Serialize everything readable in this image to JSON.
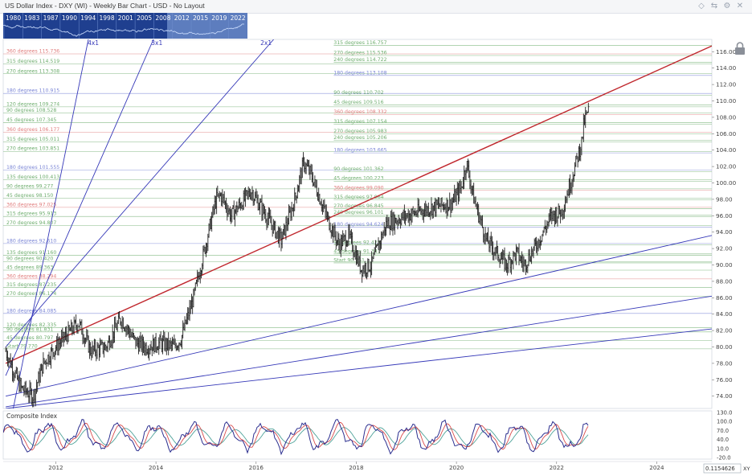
{
  "title": "US Dollar Index - DXY (WI) - Weekly Bar Chart - USD - No Layout",
  "header_icons": [
    "diamond-icon",
    "share-icon",
    "settings-icon",
    "close-icon"
  ],
  "overview": {
    "years": [
      "1980",
      "1983",
      "1987",
      "1990",
      "1994",
      "1998",
      "2001",
      "2005",
      "2008",
      "2012",
      "2015",
      "2019",
      "2022"
    ]
  },
  "colors": {
    "price_bar": "#222222",
    "fan_lines": "#3538b8",
    "resistance_line": "#c0272d",
    "level_red": "#e07c7c",
    "level_green": "#6fae6f",
    "level_blue": "#7b86d6",
    "overview_bg": "#1f3f8f",
    "overview_window": "#8fb1e6"
  },
  "chart_data": {
    "type": "bar",
    "title": "US Dollar Index - DXY (WI) - Weekly Bar Chart - USD - No Layout",
    "ylim": [
      72.5,
      117.5
    ],
    "xlim": [
      2010.95,
      2025.1
    ],
    "y_ticks": [
      "116.00",
      "114.00",
      "112.00",
      "110.00",
      "108.00",
      "106.00",
      "104.00",
      "102.00",
      "100.00",
      "98.00",
      "96.00",
      "94.00",
      "92.00",
      "90.00",
      "88.00",
      "86.00",
      "84.00",
      "82.00",
      "80.00",
      "78.00",
      "76.00",
      "74.00"
    ],
    "x_ticks": [
      "2012",
      "2014",
      "2016",
      "2018",
      "2020",
      "2022",
      "2024"
    ],
    "price_anchors": [
      [
        2011.0,
        79.5
      ],
      [
        2011.3,
        75.0
      ],
      [
        2011.55,
        74.0
      ],
      [
        2011.75,
        78.0
      ],
      [
        2012.0,
        80.0
      ],
      [
        2012.45,
        83.0
      ],
      [
        2012.7,
        79.5
      ],
      [
        2013.0,
        80.0
      ],
      [
        2013.3,
        83.5
      ],
      [
        2013.6,
        80.5
      ],
      [
        2013.8,
        80.0
      ],
      [
        2014.1,
        80.5
      ],
      [
        2014.35,
        80.0
      ],
      [
        2014.5,
        81.0
      ],
      [
        2014.75,
        86.0
      ],
      [
        2015.2,
        98.0
      ],
      [
        2015.3,
        98.5
      ],
      [
        2015.5,
        96.0
      ],
      [
        2015.9,
        99.0
      ],
      [
        2016.2,
        96.0
      ],
      [
        2016.5,
        93.0
      ],
      [
        2016.75,
        97.5
      ],
      [
        2016.95,
        102.5
      ],
      [
        2017.1,
        101.0
      ],
      [
        2017.4,
        96.0
      ],
      [
        2017.65,
        92.5
      ],
      [
        2017.85,
        93.5
      ],
      [
        2018.1,
        89.5
      ],
      [
        2018.3,
        90.0
      ],
      [
        2018.6,
        95.0
      ],
      [
        2019.0,
        96.0
      ],
      [
        2019.5,
        97.0
      ],
      [
        2019.9,
        97.5
      ],
      [
        2020.1,
        99.5
      ],
      [
        2020.2,
        102.5
      ],
      [
        2020.35,
        98.0
      ],
      [
        2020.6,
        93.0
      ],
      [
        2021.0,
        90.0
      ],
      [
        2021.2,
        91.5
      ],
      [
        2021.35,
        90.0
      ],
      [
        2021.6,
        92.5
      ],
      [
        2021.9,
        96.0
      ],
      [
        2022.1,
        96.5
      ],
      [
        2022.3,
        100.5
      ],
      [
        2022.5,
        105.0
      ],
      [
        2022.55,
        107.5
      ],
      [
        2022.65,
        109.0
      ]
    ],
    "trendlines": [
      {
        "name": "",
        "color": "#c0272d",
        "points": [
          [
            2011.0,
            78.0
          ],
          [
            2025.1,
            116.7
          ]
        ]
      },
      {
        "name": "1x1",
        "color": "#3538b8",
        "points": [
          [
            2011.0,
            74.0
          ],
          [
            2025.1,
            93.6
          ]
        ]
      },
      {
        "name": "",
        "color": "#3538b8",
        "points": [
          [
            2011.0,
            72.7
          ],
          [
            2025.1,
            86.2
          ]
        ]
      },
      {
        "name": "",
        "color": "#3538b8",
        "points": [
          [
            2011.0,
            72.5
          ],
          [
            2025.1,
            82.2
          ]
        ]
      },
      {
        "name": "4x1",
        "color": "#3538b8",
        "points": [
          [
            2011.0,
            68.0
          ],
          [
            2012.65,
            117.5
          ]
        ]
      },
      {
        "name": "3x1",
        "color": "#3538b8",
        "points": [
          [
            2011.0,
            76.5
          ],
          [
            2013.95,
            117.5
          ]
        ]
      },
      {
        "name": "2x1",
        "color": "#3538b8",
        "points": [
          [
            2011.0,
            80.0
          ],
          [
            2016.35,
            117.5
          ]
        ]
      }
    ],
    "series_labels": [
      {
        "text": "4x1",
        "x": 2012.7,
        "y": 117.2
      },
      {
        "text": "3x1",
        "x": 2013.97,
        "y": 117.2
      },
      {
        "text": "2x1",
        "x": 2016.15,
        "y": 117.2
      }
    ],
    "levels_right": [
      {
        "label": "315  degrees  116.757",
        "value": 116.757,
        "color": "green"
      },
      {
        "label": "270  degrees  115.536",
        "value": 115.536,
        "color": "green"
      },
      {
        "label": "240  degrees  114.722",
        "value": 114.722,
        "color": "green"
      },
      {
        "label": "180  degrees  113.108",
        "value": 113.108,
        "color": "blue"
      },
      {
        "label": "90  degrees  110.702",
        "value": 110.702,
        "color": "green"
      },
      {
        "label": "45  degrees  109.516",
        "value": 109.516,
        "color": "green"
      },
      {
        "label": "360  degrees  108.332",
        "value": 108.332,
        "color": "red"
      },
      {
        "label": "315  degrees  107.154",
        "value": 107.154,
        "color": "green"
      },
      {
        "label": "270  degrees  105.983",
        "value": 105.983,
        "color": "green"
      },
      {
        "label": "240  degrees  105.206",
        "value": 105.206,
        "color": "green"
      },
      {
        "label": "180  degrees  103.665",
        "value": 103.665,
        "color": "blue"
      },
      {
        "label": "90  degrees  101.362",
        "value": 101.362,
        "color": "green"
      },
      {
        "label": "45  degrees  100.223",
        "value": 100.223,
        "color": "green"
      },
      {
        "label": "360  degrees  99.090",
        "value": 99.09,
        "color": "red"
      },
      {
        "label": "315  degrees  97.964",
        "value": 97.964,
        "color": "green"
      },
      {
        "label": "270  degrees  96.845",
        "value": 96.845,
        "color": "green"
      },
      {
        "label": "240  degrees  96.101",
        "value": 96.101,
        "color": "green"
      },
      {
        "label": "180  degrees  94.624",
        "value": 94.624,
        "color": "blue"
      },
      {
        "label": "90  degrees  92.425",
        "value": 92.425,
        "color": "green"
      },
      {
        "label": "45  degrees  91.341",
        "value": 91.341,
        "color": "green"
      },
      {
        "label": "Start  90.251",
        "value": 90.251,
        "color": "green"
      }
    ],
    "levels_left": [
      {
        "label": "360  degrees  115.736",
        "value": 115.736,
        "color": "red"
      },
      {
        "label": "315  degrees  114.519",
        "value": 114.519,
        "color": "green"
      },
      {
        "label": "270  degrees  113.308",
        "value": 113.308,
        "color": "green"
      },
      {
        "label": "180  degrees  110.915",
        "value": 110.915,
        "color": "blue"
      },
      {
        "label": "120  degrees  109.274",
        "value": 109.274,
        "color": "green"
      },
      {
        "label": "90  degrees  108.528",
        "value": 108.528,
        "color": "green"
      },
      {
        "label": "45  degrees  107.345",
        "value": 107.345,
        "color": "green"
      },
      {
        "label": "360  degrees  106.177",
        "value": 106.177,
        "color": "red"
      },
      {
        "label": "315  degrees  105.011",
        "value": 105.011,
        "color": "green"
      },
      {
        "label": "270  degrees  103.851",
        "value": 103.851,
        "color": "green"
      },
      {
        "label": "180  degrees  101.555",
        "value": 101.555,
        "color": "blue"
      },
      {
        "label": "135  degrees  100.413",
        "value": 100.413,
        "color": "green"
      },
      {
        "label": "90  degrees  99.277",
        "value": 99.277,
        "color": "green"
      },
      {
        "label": "45  degrees  98.150",
        "value": 98.15,
        "color": "green"
      },
      {
        "label": "360  degrees  97.025",
        "value": 97.025,
        "color": "red"
      },
      {
        "label": "315  degrees  95.913",
        "value": 95.913,
        "color": "green"
      },
      {
        "label": "270  degrees  94.807",
        "value": 94.807,
        "color": "green"
      },
      {
        "label": "180  degrees  92.610",
        "value": 92.61,
        "color": "blue"
      },
      {
        "label": "135  degrees  91.160",
        "value": 91.16,
        "color": "green"
      },
      {
        "label": "90  degrees  90.420",
        "value": 90.42,
        "color": "green"
      },
      {
        "label": "45  degrees  89.363",
        "value": 89.363,
        "color": "green"
      },
      {
        "label": "360  degrees  88.294",
        "value": 88.294,
        "color": "red"
      },
      {
        "label": "315  degrees  87.235",
        "value": 87.235,
        "color": "green"
      },
      {
        "label": "270  degrees  86.174",
        "value": 86.174,
        "color": "green"
      },
      {
        "label": "180  degrees  84.085",
        "value": 84.085,
        "color": "blue"
      },
      {
        "label": "120  degrees  82.335",
        "value": 82.335,
        "color": "green"
      },
      {
        "label": "90  degrees  81.831",
        "value": 81.831,
        "color": "green"
      },
      {
        "label": "45  degrees  80.797",
        "value": 80.797,
        "color": "green"
      },
      {
        "label": "Start  79.770",
        "value": 79.77,
        "color": "green"
      }
    ],
    "indicator": {
      "name": "Composite Index",
      "y_ticks": [
        "130.0",
        "100.0",
        "70.0",
        "40.0",
        "10.0",
        "-20.0"
      ],
      "ylim": [
        -25,
        135
      ],
      "series": [
        {
          "color": "#2b2e8f",
          "role": "main"
        },
        {
          "color": "#d94c4c",
          "role": "fast-avg"
        },
        {
          "color": "#4fa39a",
          "role": "slow-avg"
        }
      ]
    },
    "corner_value": "0.1154626",
    "corner_xy": "XY"
  }
}
